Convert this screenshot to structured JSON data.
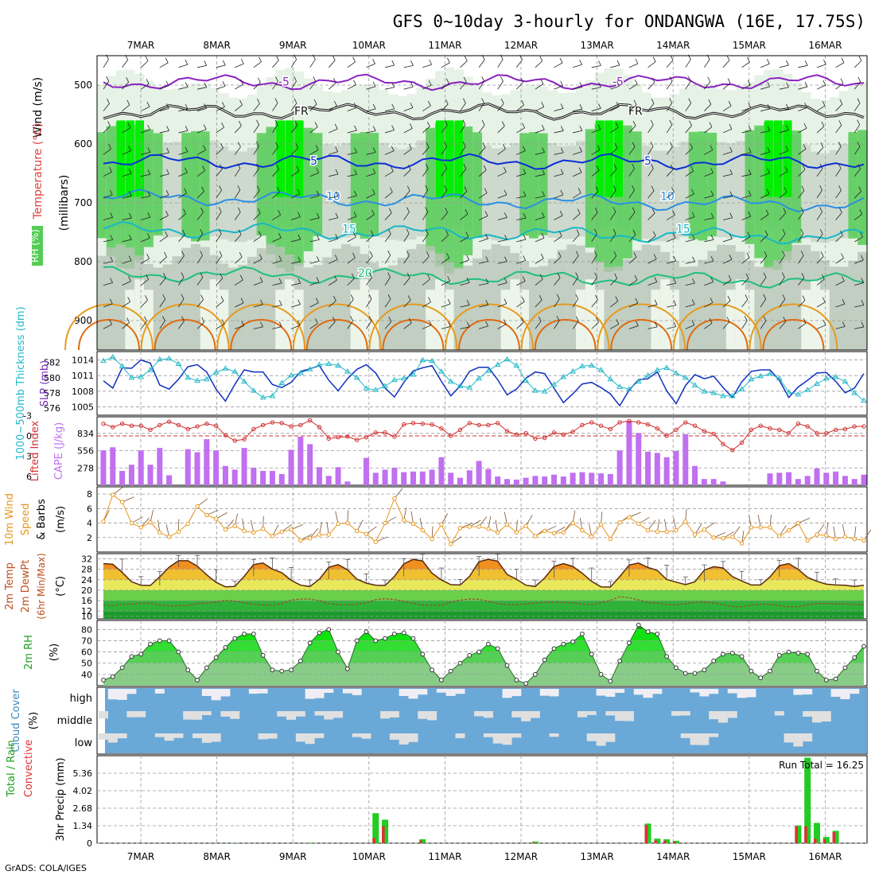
{
  "title": "GFS 0~10day 3-hourly for ONDANGWA (16E, 17.75S)",
  "credit": "GrADS: COLA/IGES",
  "days": [
    "7MAR",
    "8MAR",
    "9MAR",
    "10MAR",
    "11MAR",
    "12MAR",
    "13MAR",
    "14MAR",
    "15MAR",
    "16MAR"
  ],
  "colors": {
    "rh_light": "#e6f2e6",
    "rh_mid": "#cdd9cd",
    "rh_dark": "#b8c4b8",
    "rh_green": "#55cc55",
    "rh_bright": "#00ee00",
    "purple": "#8a22c2",
    "navy": "#0a2ed6",
    "blue": "#2b8fe3",
    "teal": "#16b8c8",
    "seagreen": "#1fbf7f",
    "orange": "#e89a1e",
    "darkorange": "#e06a10",
    "slp": "#1030c0",
    "thick": "#22b8c8",
    "li": "#d03030",
    "cape": "#c070f0",
    "wind": "#e8961e",
    "barb": "#7a5030",
    "temp": "#5a2a10",
    "dew": "#9a4a20",
    "rhline": "#2a6a2a",
    "cloud": "#6aa8d8",
    "cloudgap": "#e0e0e0",
    "precip_total": "#22cc22",
    "precip_conv": "#e03030",
    "grid": "#999999"
  },
  "chart_data": [
    {
      "type": "heatmap",
      "panel": "upper-air",
      "ylabel": "(millibars)",
      "legend_labels": [
        "Temperature (°C)",
        "Wind (m/s)",
        "RH (%)"
      ],
      "yticks": [
        500,
        600,
        700,
        800,
        900
      ],
      "ylim": [
        450,
        950
      ],
      "contours": [
        {
          "name": "-5",
          "level_mb": 495,
          "color": "purple",
          "labels": [
            "-5",
            "-5"
          ]
        },
        {
          "name": "FR",
          "level_mb": 545,
          "color": "black",
          "labels": [
            "FR",
            "FR"
          ]
        },
        {
          "name": "5",
          "level_mb": 630,
          "color": "navy",
          "labels": [
            "5",
            "5"
          ]
        },
        {
          "name": "10",
          "level_mb": 690,
          "color": "blue",
          "labels": [
            "10",
            "10"
          ]
        },
        {
          "name": "15",
          "level_mb": 745,
          "color": "teal",
          "labels": [
            "15",
            "15"
          ]
        },
        {
          "name": "20",
          "level_mb": 820,
          "color": "seagreen",
          "labels": [
            "20"
          ]
        }
      ]
    },
    {
      "type": "line",
      "panel": "slp-thickness",
      "ylabel_left": "1000~500mb Thickness (dm)",
      "ylabel_right": "SLP (mb)",
      "left_ticks": [
        576,
        578,
        580,
        582
      ],
      "right_ticks": [
        1005,
        1008,
        1011,
        1014
      ],
      "series": [
        {
          "name": "SLP",
          "axis": "right",
          "values": [
            1010.0,
            1008.6,
            1012.5,
            1012.4,
            1014.0,
            1013.4,
            1009.2,
            1008.4,
            1010.3,
            1012.7,
            1013.1,
            1011.7,
            1008.4,
            1006.1,
            1009.3,
            1012.1,
            1011.7,
            1011.7,
            1009.3,
            1008.7,
            1009.7,
            1011.8,
            1012.3,
            1012.9,
            1010.1,
            1008.1,
            1010.4,
            1012.2,
            1013.1,
            1011.5,
            1008.6,
            1006.9,
            1009.7,
            1011.9,
            1012.5,
            1012.9,
            1009.9,
            1007.1,
            1009.0,
            1011.8,
            1012.6,
            1012.6,
            1010.2,
            1007.3,
            1008.4,
            1010.5,
            1011.7,
            1011.4,
            1008.6,
            1005.8,
            1007.5,
            1009.4,
            1009.7,
            1008.7,
            1007.5,
            1005.2,
            1008.2,
            1010.2,
            1010.4,
            1011.7,
            1008.1,
            1005.6,
            1009.1,
            1011.2,
            1010.4,
            1010.9,
            1008.7,
            1006.8,
            1009.8,
            1011.8,
            1012.1,
            1012.1,
            1010.1,
            1006.8,
            1008.8,
            1010.1,
            1011.5,
            1011.6,
            1009.9,
            1007.7,
            1008.6,
            1011.4
          ]
        },
        {
          "name": "Thickness",
          "axis": "left",
          "values": [
            582.2,
            582.7,
            581.5,
            580.0,
            580.1,
            581.0,
            582.4,
            582.5,
            581.8,
            580.0,
            579.6,
            579.8,
            580.7,
            581.2,
            580.8,
            579.5,
            578.3,
            577.4,
            577.6,
            579.3,
            580.3,
            580.6,
            581.1,
            581.7,
            581.8,
            581.6,
            580.8,
            580.0,
            578.6,
            578.4,
            578.9,
            579.7,
            579.9,
            580.4,
            582.3,
            582.2,
            580.8,
            579.5,
            578.9,
            578.7,
            579.9,
            580.9,
            581.7,
            582.4,
            581.6,
            579.6,
            578.3,
            578.2,
            579.1,
            580.1,
            580.8,
            581.5,
            581.6,
            581.0,
            579.8,
            578.8,
            578.5,
            579.5,
            580.3,
            581.0,
            581.3,
            580.6,
            580.0,
            579.0,
            578.2,
            578.0,
            577.6,
            577.6,
            578.5,
            579.8,
            580.2,
            580.5,
            579.9,
            578.1,
            577.8,
            578.4,
            579.2,
            579.9,
            580.1,
            579.5,
            578.0,
            577.0
          ]
        }
      ]
    },
    {
      "type": "bar",
      "panel": "cape-li",
      "ylabel_left": "Lifted Index",
      "ylabel_right": "CAPE (J/kg)",
      "left_ticks": [
        "-3",
        "0",
        "3",
        "6"
      ],
      "right_ticks": [
        278,
        556,
        834
      ],
      "series": [
        {
          "name": "CAPE",
          "values": [
            560,
            610,
            230,
            330,
            560,
            330,
            600,
            160,
            0,
            580,
            530,
            740,
            560,
            310,
            250,
            600,
            280,
            230,
            230,
            180,
            570,
            780,
            660,
            290,
            150,
            290,
            60,
            0,
            440,
            200,
            250,
            280,
            210,
            220,
            220,
            250,
            450,
            200,
            120,
            240,
            390,
            260,
            140,
            100,
            90,
            120,
            150,
            140,
            170,
            140,
            200,
            210,
            200,
            190,
            180,
            560,
            1030,
            840,
            540,
            520,
            450,
            550,
            820,
            310,
            100,
            100,
            60,
            0,
            0,
            0,
            0,
            190,
            200,
            210,
            100,
            150,
            270,
            200,
            220,
            150,
            100,
            170
          ]
        },
        {
          "name": "Lifted Index",
          "values": [
            -1.8,
            -1.3,
            -1.8,
            -1.5,
            -1.5,
            -0.9,
            -1.6,
            -2.1,
            -1.6,
            -1.0,
            -1.4,
            -1.8,
            -1.5,
            -0.1,
            0.7,
            0.5,
            -1.0,
            -1.6,
            -2.0,
            -1.9,
            -1.4,
            -1.6,
            -2.3,
            -1.3,
            0.4,
            0.2,
            0.1,
            0.6,
            0.2,
            -0.5,
            -0.5,
            0.1,
            -1.7,
            -1.9,
            -1.8,
            -1.7,
            -1.1,
            0.0,
            -0.9,
            -1.9,
            -1.6,
            -1.6,
            -1.9,
            -0.7,
            -0.2,
            -0.4,
            0.4,
            0.3,
            -0.5,
            -0.2,
            -0.6,
            -1.6,
            -2.0,
            -1.5,
            -1.0,
            -2.0,
            -2.2,
            -2.0,
            -1.7,
            -1.1,
            0.0,
            -0.9,
            -2.0,
            -1.5,
            -0.7,
            -0.3,
            1.2,
            2.1,
            1.0,
            -0.9,
            -1.5,
            -1.1,
            -0.9,
            -0.4,
            -1.8,
            -1.4,
            -0.4,
            -0.4,
            -0.9,
            -1.0,
            -1.4,
            -1.4
          ]
        }
      ]
    },
    {
      "type": "line",
      "panel": "wind10m",
      "ylabel": "10m Wind Speed (m/s) & Barbs",
      "yticks": [
        2,
        4,
        6,
        8
      ],
      "ylim": [
        0,
        9
      ],
      "series": [
        {
          "name": "10m Wind Speed",
          "values": [
            4.2,
            7.9,
            6.9,
            4.0,
            3.4,
            4.1,
            2.7,
            2.1,
            2.8,
            3.9,
            6.3,
            5.1,
            4.6,
            3.1,
            3.6,
            2.9,
            2.7,
            3.2,
            2.2,
            2.8,
            3.1,
            1.6,
            1.9,
            2.4,
            2.4,
            3.9,
            4.0,
            2.9,
            2.5,
            1.4,
            4.0,
            7.4,
            4.4,
            3.9,
            3.0,
            1.8,
            3.8,
            1.1,
            3.3,
            3.5,
            3.5,
            3.2,
            2.7,
            3.8,
            2.7,
            3.6,
            2.2,
            2.9,
            2.6,
            2.7,
            4.0,
            3.0,
            2.1,
            3.8,
            1.8,
            4.1,
            4.8,
            3.9,
            3.0,
            2.8,
            2.8,
            3.0,
            4.2,
            2.4,
            3.1,
            2.0,
            1.9,
            2.1,
            1.2,
            3.4,
            3.4,
            3.4,
            2.2,
            3.0,
            4.0,
            1.6,
            2.4,
            2.3,
            1.8,
            2.1,
            1.8,
            1.6
          ]
        }
      ]
    },
    {
      "type": "area",
      "panel": "temp2m",
      "ylabel": "2m Temp 2m DewPt (6hr Min/Max) (°C)",
      "yticks": [
        10,
        12,
        16,
        20,
        24,
        28,
        32
      ],
      "ylim": [
        9,
        34
      ],
      "series": [
        {
          "name": "2m Temp",
          "values": [
            30.2,
            29.9,
            26.8,
            23.2,
            21.9,
            21.8,
            25.1,
            28.8,
            31.3,
            31.3,
            29.2,
            25.9,
            23.0,
            21.3,
            21.4,
            25.3,
            29.8,
            30.4,
            28.1,
            26.7,
            23.8,
            21.9,
            21.4,
            24.2,
            28.8,
            29.8,
            27.8,
            24.2,
            22.7,
            21.9,
            21.8,
            25.3,
            30.1,
            31.8,
            31.2,
            26.5,
            23.9,
            22.1,
            22.0,
            25.3,
            30.9,
            31.8,
            31.1,
            26.0,
            24.2,
            21.9,
            21.4,
            24.7,
            29.1,
            30.2,
            29.1,
            26.5,
            23.4,
            21.3,
            21.2,
            25.2,
            29.6,
            30.4,
            28.7,
            27.6,
            24.1,
            23.1,
            22.1,
            23.2,
            27.7,
            29.0,
            28.5,
            25.2,
            23.5,
            22.0,
            22.0,
            25.1,
            29.4,
            30.2,
            28.0,
            24.9,
            23.4,
            22.3,
            22.0,
            21.9,
            21.4,
            21.9
          ]
        },
        {
          "name": "2m DewPt",
          "values": [
            14.3,
            14.1,
            14.6,
            14.6,
            15.0,
            15.0,
            14.3,
            14.0,
            14.0,
            14.1,
            14.9,
            15.0,
            15.4,
            16.1,
            15.8,
            15.2,
            14.6,
            14.3,
            14.3,
            14.8,
            16.2,
            16.6,
            16.6,
            16.0,
            14.9,
            14.5,
            14.3,
            14.6,
            15.2,
            16.4,
            16.7,
            16.4,
            15.7,
            14.9,
            14.3,
            14.2,
            14.2,
            15.4,
            16.2,
            16.6,
            16.5,
            15.7,
            14.8,
            14.5,
            14.4,
            14.7,
            15.0,
            15.4,
            15.4,
            15.3,
            15.1,
            14.7,
            14.4,
            15.2,
            16.1,
            17.5,
            17.1,
            16.3,
            15.2,
            15.1,
            14.5,
            14.4,
            14.8,
            15.4,
            15.4,
            15.1,
            14.4,
            13.7,
            13.6,
            14.3,
            14.6,
            14.6,
            14.1,
            13.6,
            13.6,
            14.4,
            14.8,
            14.9,
            14.7,
            14.8,
            14.5,
            14.4
          ]
        }
      ]
    },
    {
      "type": "area",
      "panel": "rh2m",
      "ylabel": "2m RH (%)",
      "yticks": [
        40,
        50,
        60,
        70,
        80
      ],
      "ylim": [
        30,
        88
      ],
      "series": [
        {
          "name": "2m RH",
          "values": [
            35,
            38,
            46,
            56,
            58,
            67,
            70,
            70,
            60,
            44,
            35,
            46,
            55,
            64,
            72,
            76,
            76,
            57,
            44,
            43,
            44,
            52,
            68,
            77,
            80,
            60,
            45,
            70,
            78,
            70,
            72,
            76,
            77,
            72,
            58,
            44,
            35,
            43,
            50,
            57,
            60,
            67,
            63,
            48,
            35,
            32,
            40,
            53,
            63,
            67,
            69,
            76,
            58,
            40,
            34,
            52,
            68,
            84,
            78,
            76,
            56,
            46,
            41,
            41,
            44,
            52,
            58,
            59,
            56,
            43,
            37,
            43,
            57,
            60,
            59,
            58,
            43,
            35,
            36,
            46,
            55,
            65
          ]
        }
      ]
    },
    {
      "type": "bar",
      "panel": "cloud",
      "ylabel": "Cloud Cover (%)",
      "ytick_labels": [
        "high",
        "middle",
        "low"
      ]
    },
    {
      "type": "bar",
      "panel": "precip",
      "ylabel": "3hr Precip (mm)",
      "legend_labels": [
        "Total / Rain",
        "Convective"
      ],
      "annotation": "Run Total = 16.25",
      "yticks": [
        "0",
        "1.34",
        "2.68",
        "4.02",
        "5.36"
      ],
      "ylim": [
        0,
        6.7
      ],
      "series": [
        {
          "name": "Total / Rain",
          "values": [
            0,
            0,
            0,
            0,
            0,
            0,
            0,
            0,
            0,
            0,
            0,
            0,
            0,
            0,
            0.02,
            0,
            0,
            0,
            0,
            0,
            0,
            0,
            0.04,
            0,
            0,
            0,
            0,
            0,
            0,
            2.3,
            1.8,
            0,
            0,
            0,
            0.3,
            0,
            0,
            0,
            0,
            0,
            0,
            0,
            0,
            0,
            0,
            0,
            0.12,
            0,
            0,
            0,
            0,
            0,
            0,
            0,
            0,
            0,
            0,
            0,
            1.5,
            0.35,
            0.3,
            0.18,
            0,
            0,
            0,
            0,
            0,
            0,
            0,
            0,
            0,
            0,
            0,
            0,
            1.35,
            6.55,
            1.55,
            0.48,
            0.95,
            0,
            0,
            0
          ]
        },
        {
          "name": "Convective",
          "values": [
            0,
            0,
            0,
            0,
            0,
            0,
            0,
            0,
            0,
            0,
            0,
            0,
            0,
            0,
            0,
            0,
            0,
            0,
            0,
            0,
            0,
            0,
            0.02,
            0,
            0,
            0,
            0,
            0,
            0,
            0.4,
            1.3,
            0,
            0,
            0,
            0.2,
            0,
            0,
            0,
            0,
            0,
            0,
            0,
            0,
            0,
            0,
            0,
            0.06,
            0,
            0,
            0,
            0,
            0,
            0,
            0,
            0,
            0,
            0,
            0,
            1.4,
            0.2,
            0.2,
            0.12,
            0,
            0,
            0,
            0,
            0,
            0,
            0,
            0,
            0,
            0,
            0,
            0,
            1.3,
            1.3,
            0.35,
            0.3,
            0.85,
            0,
            0,
            0
          ]
        }
      ]
    }
  ]
}
